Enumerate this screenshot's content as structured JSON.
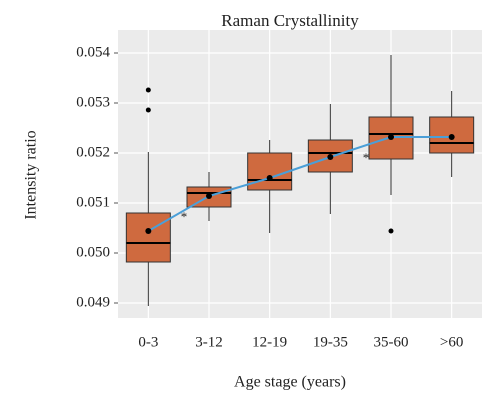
{
  "chart_data": {
    "type": "box",
    "title": "Raman Crystallinity",
    "x_label": "Age stage (years)",
    "y_label": "Intensity ratio",
    "categories": [
      "0-3",
      "3-12",
      "12-19",
      "19-35",
      "35-60",
      ">60"
    ],
    "whisker_low": [
      0.04894,
      0.05064,
      0.0504,
      0.05078,
      0.05116,
      0.05152
    ],
    "q1": [
      0.04982,
      0.05092,
      0.05126,
      0.05162,
      0.05188,
      0.052
    ],
    "median": [
      0.0502,
      0.0512,
      0.05146,
      0.052,
      0.05238,
      0.0522
    ],
    "q3": [
      0.0508,
      0.05132,
      0.052,
      0.05226,
      0.05272,
      0.05272
    ],
    "whisker_high": [
      0.05202,
      0.05162,
      0.05226,
      0.05298,
      0.05396,
      0.05324
    ],
    "outliers": [
      [
        0.05326,
        0.05286
      ],
      [],
      [],
      [],
      [
        0.05044
      ],
      []
    ],
    "mean": [
      0.05044,
      0.05114,
      0.0515,
      0.05192,
      0.05232,
      0.05232
    ],
    "significance": [
      {
        "category": 1,
        "label": "*"
      },
      {
        "category": 4,
        "label": "*"
      }
    ],
    "box_color": "#cf6a3f",
    "mean_line_color": "#4a9fd8",
    "ylim": [
      0.0487,
      0.05446
    ],
    "yticks": [
      0.049,
      {
        "value": 0.05,
        "label": "0.050"
      },
      0.051,
      0.052,
      0.053,
      0.054
    ],
    "grid": true
  }
}
